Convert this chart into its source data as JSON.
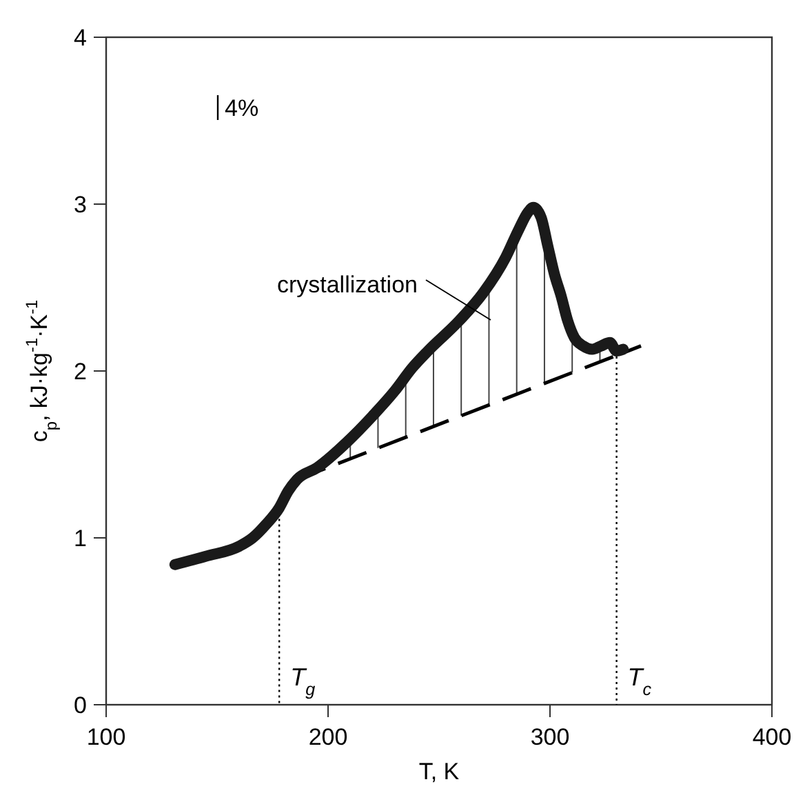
{
  "chart_data": {
    "type": "line",
    "xlabel": "T, K",
    "ylabel": "c$_{p}$, kJ·kg$^{-1}$·K$^{-1}$",
    "xlim": [
      100,
      400
    ],
    "xticks": [
      100,
      200,
      300,
      400
    ],
    "ylim": [
      0,
      4
    ],
    "yticks": [
      0,
      1,
      2,
      3,
      4
    ],
    "grid": false,
    "series": [
      {
        "color": "#1a1a1a",
        "x": [
          131,
          145,
          160,
          166,
          172,
          178,
          182,
          186,
          195,
          209,
          220,
          230,
          238,
          245,
          259,
          270,
          280,
          286,
          290,
          292.5,
          296,
          299,
          302,
          305,
          308,
          311,
          315,
          319,
          323,
          327,
          330,
          333
        ],
        "values": [
          0.84,
          0.89,
          0.95,
          1.0,
          1.08,
          1.18,
          1.28,
          1.35,
          1.42,
          1.58,
          1.73,
          1.88,
          2.02,
          2.12,
          2.3,
          2.47,
          2.68,
          2.85,
          2.95,
          2.98,
          2.92,
          2.75,
          2.58,
          2.45,
          2.3,
          2.2,
          2.15,
          2.13,
          2.15,
          2.17,
          2.12,
          2.13
        ]
      },
      {
        "type": "line",
        "color": "#000000",
        "line_style": "dashed",
        "x": [
          186,
          341
        ],
        "values": [
          1.35,
          2.15
        ]
      }
    ],
    "ref_lines": [
      {
        "axis": "x",
        "value": 178,
        "label": "T$_{g}$",
        "line_style": "dotted"
      },
      {
        "axis": "x",
        "value": 330,
        "label": "T$_{c}$",
        "line_style": "dotted"
      }
    ],
    "annotations": [
      "4%",
      "crystallization"
    ]
  }
}
